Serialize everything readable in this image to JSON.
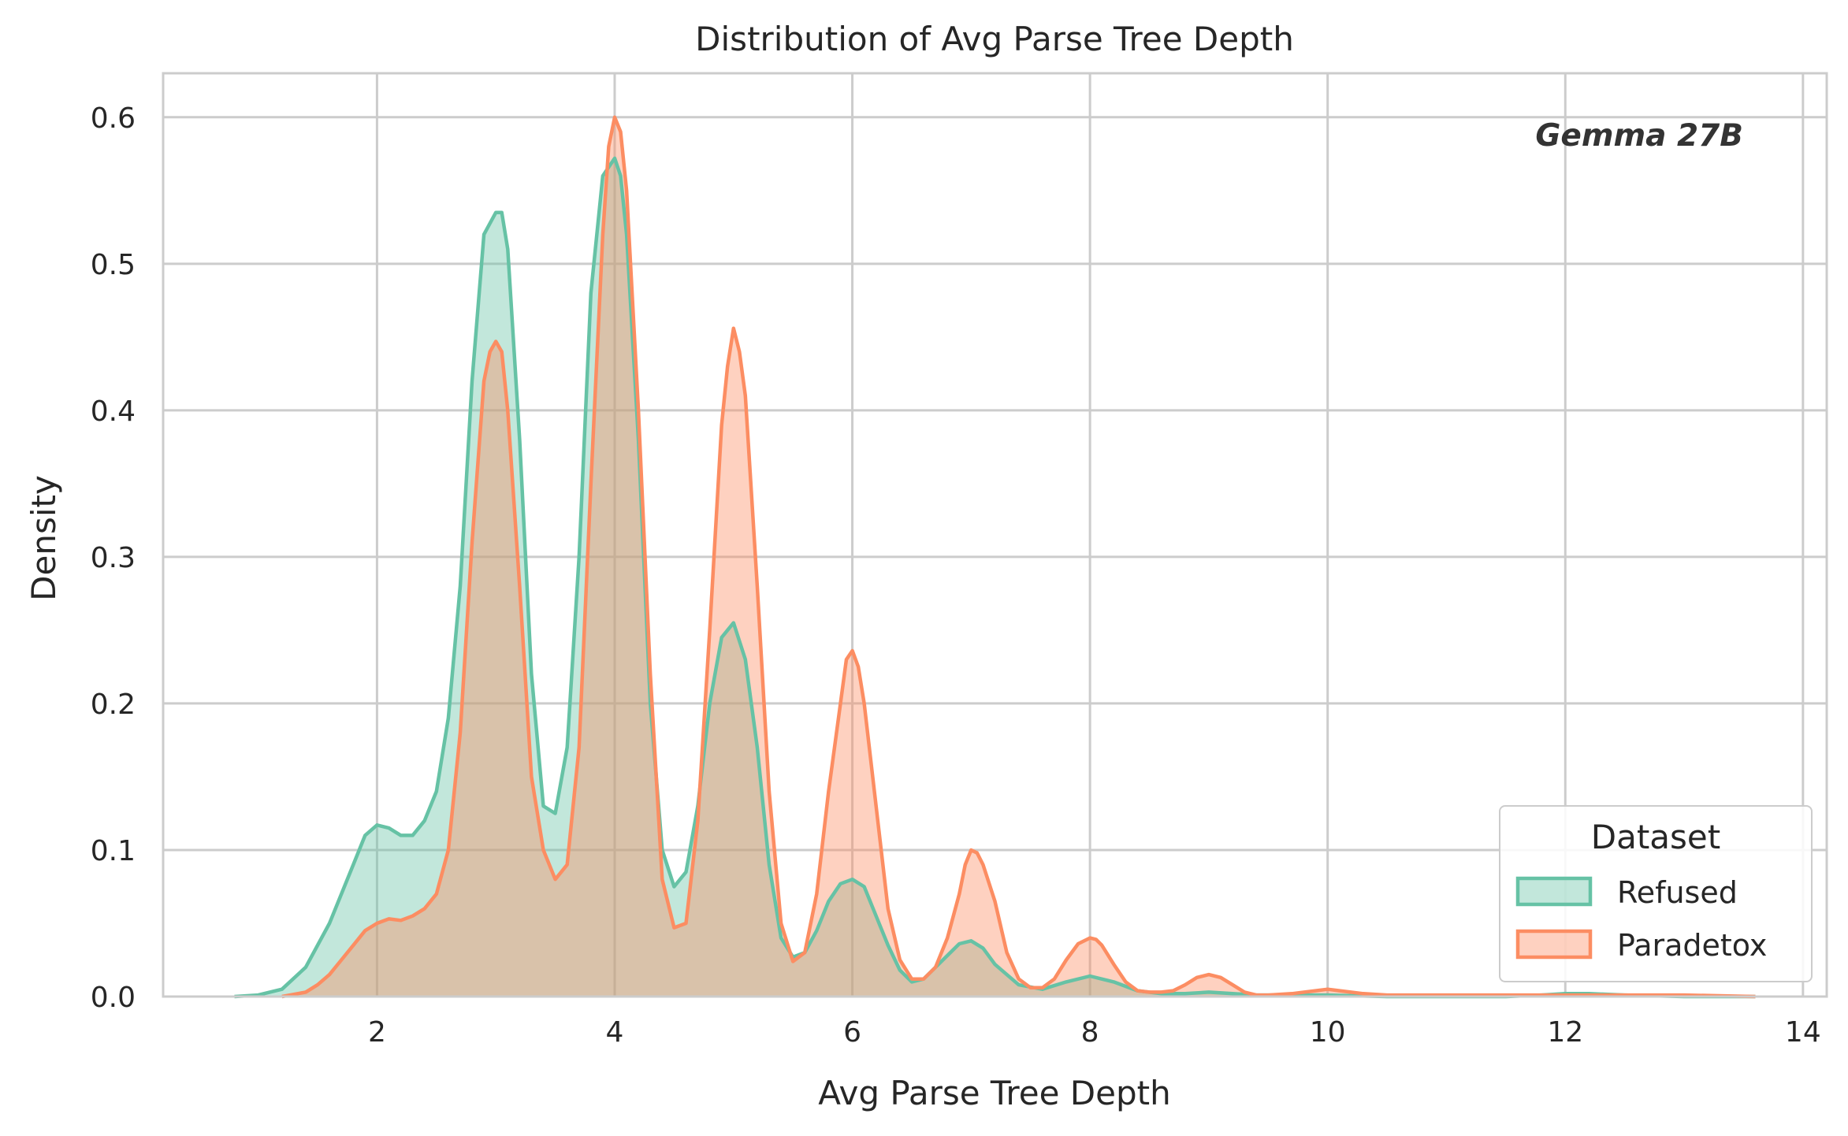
{
  "chart_data": {
    "type": "area",
    "title": "Distribution of Avg Parse Tree Depth",
    "xlabel": "Avg Parse Tree Depth",
    "ylabel": "Density",
    "xlim": [
      0.2,
      14.2
    ],
    "ylim": [
      0,
      0.63
    ],
    "xticks": [
      2,
      4,
      6,
      8,
      10,
      12,
      14
    ],
    "xtick_labels": [
      "2",
      "4",
      "6",
      "8",
      "10",
      "12",
      "14"
    ],
    "yticks": [
      0.0,
      0.1,
      0.2,
      0.3,
      0.4,
      0.5,
      0.6
    ],
    "ytick_labels": [
      "0.0",
      "0.1",
      "0.2",
      "0.3",
      "0.4",
      "0.5",
      "0.6"
    ],
    "grid": true,
    "annotation": "Gemma 27B",
    "legend": {
      "title": "Dataset",
      "placement": "lower-right"
    },
    "series": [
      {
        "name": "Refused",
        "color": "#66c2a5",
        "x": [
          0.8,
          1.0,
          1.2,
          1.4,
          1.6,
          1.8,
          1.9,
          2.0,
          2.1,
          2.2,
          2.3,
          2.4,
          2.5,
          2.6,
          2.7,
          2.8,
          2.9,
          3.0,
          3.05,
          3.1,
          3.2,
          3.3,
          3.4,
          3.5,
          3.6,
          3.7,
          3.8,
          3.9,
          4.0,
          4.05,
          4.1,
          4.2,
          4.3,
          4.4,
          4.5,
          4.6,
          4.7,
          4.8,
          4.9,
          5.0,
          5.1,
          5.2,
          5.3,
          5.4,
          5.5,
          5.6,
          5.7,
          5.8,
          5.9,
          6.0,
          6.1,
          6.2,
          6.3,
          6.4,
          6.5,
          6.6,
          6.8,
          6.9,
          7.0,
          7.1,
          7.2,
          7.4,
          7.6,
          7.8,
          8.0,
          8.2,
          8.4,
          8.6,
          8.8,
          9.0,
          9.2,
          9.4,
          9.6,
          9.8,
          10.0,
          10.5,
          11.0,
          11.5,
          11.8,
          12.0,
          12.2,
          12.5,
          13.0,
          13.6
        ],
        "y": [
          0.0,
          0.001,
          0.005,
          0.02,
          0.05,
          0.09,
          0.11,
          0.117,
          0.115,
          0.11,
          0.11,
          0.12,
          0.14,
          0.19,
          0.28,
          0.42,
          0.52,
          0.535,
          0.535,
          0.51,
          0.38,
          0.22,
          0.13,
          0.125,
          0.17,
          0.3,
          0.48,
          0.56,
          0.572,
          0.56,
          0.52,
          0.38,
          0.2,
          0.1,
          0.075,
          0.085,
          0.13,
          0.2,
          0.245,
          0.255,
          0.23,
          0.17,
          0.09,
          0.04,
          0.027,
          0.03,
          0.045,
          0.065,
          0.077,
          0.08,
          0.075,
          0.055,
          0.035,
          0.018,
          0.01,
          0.012,
          0.028,
          0.036,
          0.038,
          0.033,
          0.022,
          0.008,
          0.005,
          0.01,
          0.014,
          0.01,
          0.004,
          0.002,
          0.002,
          0.003,
          0.002,
          0.001,
          0.001,
          0.001,
          0.001,
          0.0,
          0.0,
          0.0,
          0.001,
          0.002,
          0.002,
          0.001,
          0.0,
          0.0
        ]
      },
      {
        "name": "Paradetox",
        "color": "#fc8d62",
        "x": [
          1.2,
          1.4,
          1.5,
          1.6,
          1.7,
          1.8,
          1.9,
          2.0,
          2.1,
          2.2,
          2.3,
          2.4,
          2.5,
          2.6,
          2.7,
          2.8,
          2.9,
          2.95,
          3.0,
          3.05,
          3.1,
          3.2,
          3.3,
          3.4,
          3.5,
          3.6,
          3.7,
          3.8,
          3.9,
          3.95,
          4.0,
          4.05,
          4.1,
          4.2,
          4.3,
          4.4,
          4.5,
          4.6,
          4.7,
          4.8,
          4.9,
          4.95,
          5.0,
          5.05,
          5.1,
          5.2,
          5.3,
          5.4,
          5.5,
          5.6,
          5.7,
          5.8,
          5.9,
          5.95,
          6.0,
          6.05,
          6.1,
          6.2,
          6.3,
          6.4,
          6.5,
          6.6,
          6.7,
          6.8,
          6.9,
          6.95,
          7.0,
          7.05,
          7.1,
          7.2,
          7.3,
          7.4,
          7.5,
          7.6,
          7.7,
          7.8,
          7.9,
          8.0,
          8.05,
          8.1,
          8.2,
          8.3,
          8.4,
          8.5,
          8.6,
          8.7,
          8.8,
          8.9,
          9.0,
          9.1,
          9.2,
          9.3,
          9.4,
          9.5,
          9.7,
          9.9,
          10.0,
          10.1,
          10.3,
          10.5,
          11.0,
          11.5,
          12.0,
          12.5,
          13.0,
          13.6
        ],
        "y": [
          0.0,
          0.003,
          0.008,
          0.015,
          0.025,
          0.035,
          0.045,
          0.05,
          0.053,
          0.052,
          0.055,
          0.06,
          0.07,
          0.1,
          0.18,
          0.31,
          0.42,
          0.44,
          0.447,
          0.44,
          0.4,
          0.28,
          0.15,
          0.1,
          0.08,
          0.09,
          0.17,
          0.35,
          0.52,
          0.58,
          0.6,
          0.59,
          0.55,
          0.4,
          0.22,
          0.08,
          0.047,
          0.05,
          0.12,
          0.25,
          0.39,
          0.43,
          0.456,
          0.44,
          0.41,
          0.28,
          0.14,
          0.05,
          0.024,
          0.03,
          0.07,
          0.14,
          0.2,
          0.23,
          0.236,
          0.225,
          0.2,
          0.13,
          0.06,
          0.025,
          0.012,
          0.012,
          0.02,
          0.04,
          0.07,
          0.09,
          0.1,
          0.098,
          0.09,
          0.065,
          0.03,
          0.012,
          0.006,
          0.006,
          0.012,
          0.025,
          0.036,
          0.04,
          0.039,
          0.035,
          0.022,
          0.01,
          0.004,
          0.003,
          0.003,
          0.004,
          0.008,
          0.013,
          0.015,
          0.013,
          0.008,
          0.003,
          0.001,
          0.001,
          0.002,
          0.004,
          0.005,
          0.004,
          0.002,
          0.001,
          0.001,
          0.001,
          0.001,
          0.001,
          0.001,
          0.0
        ]
      }
    ]
  }
}
